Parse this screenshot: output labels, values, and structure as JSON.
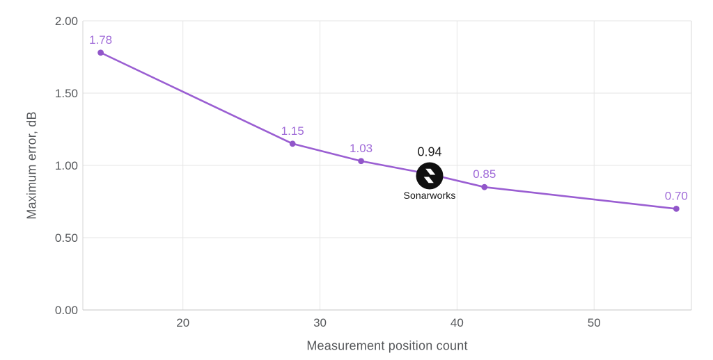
{
  "page": {
    "background": "#ffffff"
  },
  "chart_data": {
    "type": "line",
    "title": "",
    "x": [
      14,
      28,
      33,
      38,
      42,
      56
    ],
    "series": [
      {
        "name": "Maximum error",
        "values": [
          1.78,
          1.15,
          1.03,
          0.94,
          0.85,
          0.7
        ]
      }
    ],
    "point_labels": [
      "1.78",
      "1.15",
      "1.03",
      "0.94",
      "0.85",
      "0.70"
    ],
    "highlight_index": 3,
    "xlabel": "Measurement position count",
    "ylabel": "Maximum error, dB",
    "xlim": [
      12.7,
      57.1
    ],
    "ylim": [
      0,
      2
    ],
    "x_ticks": [
      20,
      30,
      40,
      50
    ],
    "y_ticks": [
      0,
      0.5,
      1,
      1.5,
      2
    ],
    "y_tick_decimals": 2,
    "grid": true,
    "legend": "none",
    "colors": {
      "line": "#9a5ed2",
      "marker": "#9156c9",
      "point_label": "#a06bd8",
      "highlight_label": "#1c1c1c",
      "grid": "#e6e6e6",
      "x_axis_line": "#c4c4c4",
      "y_axis_line": "#d4d4d4",
      "right_border": "#dadada",
      "tick_text": "#56585b"
    }
  },
  "logo": {
    "caption": "Sonarworks",
    "background": "#101010",
    "glyph_color": "#ffffff",
    "glyph_name": "sonarworks-flash-icon"
  }
}
